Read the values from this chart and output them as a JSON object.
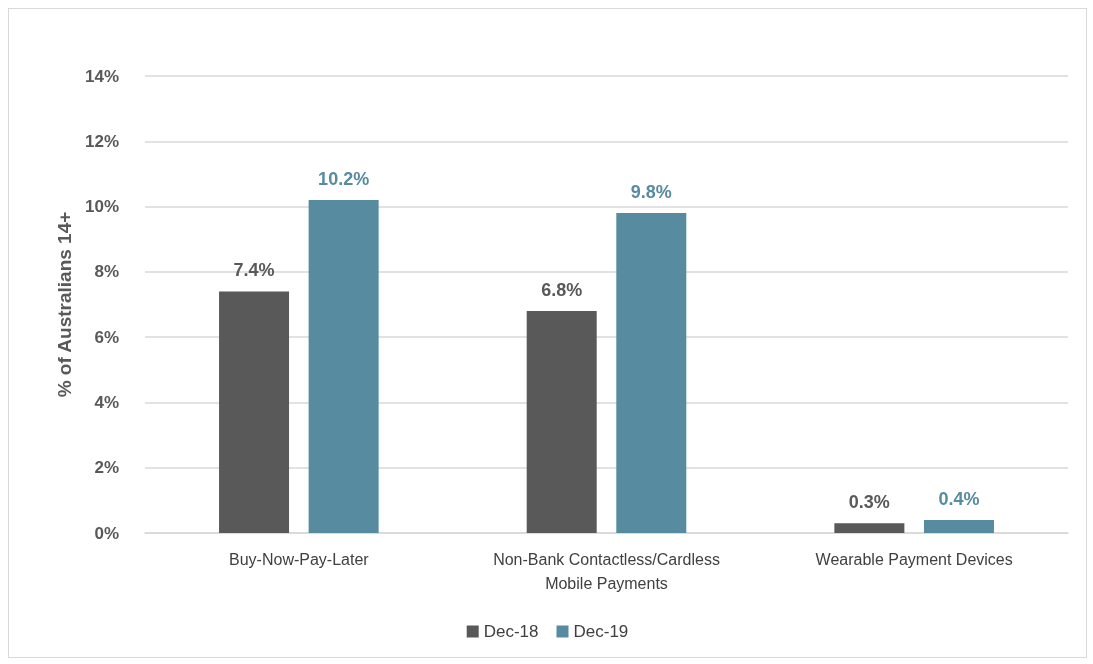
{
  "chart_data": {
    "type": "bar",
    "ylabel": "% of Australians 14+",
    "categories": [
      "Buy-Now-Pay-Later",
      "Non-Bank Contactless/Cardless\nMobile Payments",
      "Wearable Payment Devices"
    ],
    "series": [
      {
        "name": "Dec-18",
        "color": "#595959",
        "values": [
          7.4,
          6.8,
          0.3
        ],
        "value_labels": [
          "7.4%",
          "6.8%",
          "0.3%"
        ]
      },
      {
        "name": "Dec-19",
        "color": "#568ba0",
        "values": [
          10.2,
          9.8,
          0.4
        ],
        "value_labels": [
          "10.2%",
          "9.8%",
          "0.4%"
        ]
      }
    ],
    "ylim": [
      0,
      14
    ],
    "yticks": [
      {
        "value": 0,
        "label": "0%"
      },
      {
        "value": 2,
        "label": "2%"
      },
      {
        "value": 4,
        "label": "4%"
      },
      {
        "value": 6,
        "label": "6%"
      },
      {
        "value": 8,
        "label": "8%"
      },
      {
        "value": 10,
        "label": "10%"
      },
      {
        "value": 12,
        "label": "12%"
      },
      {
        "value": 14,
        "label": "14%"
      }
    ],
    "grid": "y",
    "legend": "bottom"
  }
}
